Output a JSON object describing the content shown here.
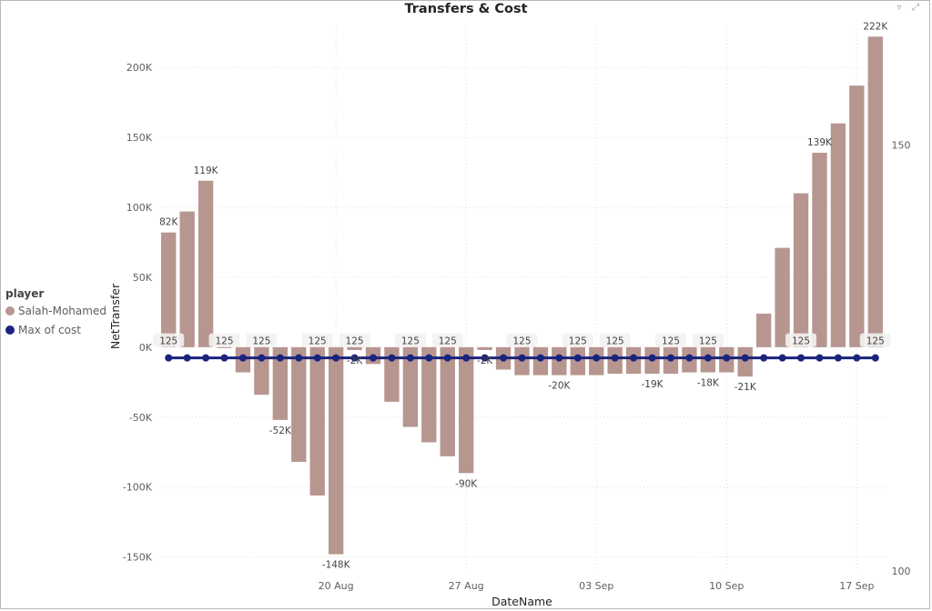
{
  "visual": {
    "title": "Transfers & Cost",
    "icons": [
      "filter-icon",
      "focus-mode-icon"
    ]
  },
  "legend": {
    "title": "player",
    "items": [
      {
        "label": "Salah-Mohamed",
        "color": "#b79690"
      },
      {
        "label": "Max of cost",
        "color": "#1a237e"
      }
    ]
  },
  "chart_data": {
    "type": "bar",
    "title": "Transfers & Cost",
    "xlabel": "DateName",
    "ylabel": "NetTransfer",
    "ylim": [
      -160000,
      230000
    ],
    "y2lim": [
      100,
      164
    ],
    "yticks": [
      -150000,
      -100000,
      -50000,
      0,
      50000,
      100000,
      150000,
      200000
    ],
    "ytick_labels": [
      "-150K",
      "-100K",
      "-50K",
      "0K",
      "50K",
      "100K",
      "150K",
      "200K"
    ],
    "y2ticks": [
      100,
      150
    ],
    "y2tick_labels": [
      "100",
      "150"
    ],
    "x_start_date": "2019-08-11",
    "xticks": [
      {
        "date": "2019-08-20",
        "label": "20 Aug"
      },
      {
        "date": "2019-08-27",
        "label": "27 Aug"
      },
      {
        "date": "2019-09-03",
        "label": "03 Sep"
      },
      {
        "date": "2019-09-10",
        "label": "10 Sep"
      },
      {
        "date": "2019-09-17",
        "label": "17 Sep"
      }
    ],
    "grid": true,
    "legend_position": "left",
    "series": [
      {
        "name": "Salah-Mohamed",
        "kind": "bar",
        "color": "#b79690",
        "values": [
          82000,
          97000,
          119000,
          -500,
          -18000,
          -34000,
          -52000,
          -82000,
          -106000,
          -148000,
          -2000,
          -12000,
          -39000,
          -57000,
          -68000,
          -78000,
          -90000,
          -2000,
          -16000,
          -20000,
          -20000,
          -20000,
          -20000,
          -20000,
          -19000,
          -19000,
          -19000,
          -19000,
          -18000,
          -18000,
          -18000,
          -21000,
          24000,
          71000,
          110000,
          139000,
          160000,
          187000,
          222000
        ],
        "labels": {
          "0": "82K",
          "2": "119K",
          "6": "-52K",
          "9": "-148K",
          "10": "-2K",
          "16": "-90K",
          "17": "-2K",
          "21": "-20K",
          "26": "-19K",
          "29": "-18K",
          "31": "-21K",
          "35": "139K",
          "38": "222K"
        }
      },
      {
        "name": "Max of cost",
        "kind": "line",
        "color": "#1a237e",
        "values": [
          125,
          125,
          125,
          125,
          125,
          125,
          125,
          125,
          125,
          125,
          125,
          125,
          125,
          125,
          125,
          125,
          125,
          125,
          125,
          125,
          125,
          125,
          125,
          125,
          125,
          125,
          125,
          125,
          125,
          125,
          125,
          125,
          125,
          125,
          125,
          125,
          125,
          125,
          125
        ],
        "labels": {
          "0": "125",
          "3": "125",
          "5": "125",
          "8": "125",
          "10": "125",
          "13": "125",
          "15": "125",
          "19": "125",
          "22": "125",
          "24": "125",
          "27": "125",
          "29": "125",
          "34": "125",
          "38": "125"
        }
      }
    ]
  }
}
